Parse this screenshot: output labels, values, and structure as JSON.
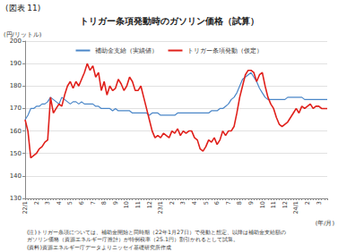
{
  "chart_data": {
    "type": "line",
    "figure_label": "(図表 11)",
    "title": "トリガー条項発動時のガソリン価格（試算）",
    "y_label": "(円/リットル)",
    "x_label": "(年/月)",
    "annotations": [
      "(注)トリガー条項については、補助金開始と同時期（22年1月27日）で発動と想定、以降は補助金支給額の",
      "ガソリン価格（資源エネルギー庁推計）が特例税率（25.1円）割引かれるとして試算。",
      "(資料)資源エネルギー庁データよりニッセイ基礎研究所作成"
    ],
    "categories": [
      "22/1",
      null,
      null,
      null,
      "2",
      null,
      null,
      null,
      "3",
      null,
      null,
      null,
      "4",
      null,
      null,
      null,
      "5",
      null,
      null,
      null,
      "6",
      null,
      null,
      null,
      "7",
      null,
      null,
      null,
      "8",
      null,
      null,
      null,
      "9",
      null,
      null,
      null,
      "10",
      null,
      null,
      null,
      "11",
      null,
      null,
      null,
      "12",
      null,
      null,
      null,
      "23/1",
      null,
      null,
      null,
      "2",
      null,
      null,
      null,
      "3",
      null,
      null,
      null,
      "4",
      null,
      null,
      null,
      "5",
      null,
      null,
      null,
      "6",
      null,
      null,
      null,
      "7",
      null,
      null,
      null,
      "8",
      null,
      null,
      null,
      "9",
      null,
      null,
      null,
      "10",
      null,
      null,
      null,
      "11",
      null,
      null,
      null,
      "12",
      null,
      null,
      null,
      "24/1",
      null,
      null,
      null,
      "2",
      null,
      null,
      null,
      "3",
      null,
      null,
      null
    ],
    "series": [
      {
        "name": "補助金支給（実績値）",
        "color": "#4a86c8",
        "values": [
          165,
          167,
          170,
          170,
          171,
          171,
          172,
          172,
          173,
          175,
          174,
          173,
          172,
          175,
          174,
          173,
          172,
          173,
          173,
          172,
          173,
          172,
          172,
          172,
          172,
          171,
          171,
          170,
          170,
          170,
          170,
          169,
          170,
          169,
          169,
          169,
          169,
          169,
          168,
          168,
          168,
          168,
          168,
          168,
          167,
          168,
          168,
          168,
          167,
          167,
          167,
          167,
          167,
          167,
          168,
          168,
          168,
          168,
          168,
          168,
          168,
          168,
          168,
          168,
          168,
          168,
          169,
          169,
          169,
          170,
          170,
          171,
          172,
          174,
          175,
          177,
          180,
          183,
          184,
          185,
          186,
          184,
          182,
          179,
          177,
          175,
          174,
          174,
          174,
          174,
          174,
          174,
          174,
          175,
          175,
          175,
          175,
          175,
          175,
          174,
          174,
          174,
          174,
          174,
          174,
          174,
          174,
          174
        ]
      },
      {
        "name": "トリガー条項発動（仮定）",
        "color": "#e0201b",
        "values": [
          165,
          160,
          148,
          149,
          150,
          152,
          153,
          155,
          156,
          175,
          168,
          170,
          172,
          171,
          176,
          180,
          182,
          179,
          182,
          180,
          183,
          186,
          190,
          187,
          189,
          184,
          186,
          178,
          182,
          176,
          180,
          178,
          179,
          183,
          181,
          178,
          180,
          184,
          182,
          178,
          178,
          180,
          175,
          170,
          165,
          160,
          157,
          158,
          157,
          159,
          158,
          157,
          160,
          159,
          161,
          158,
          160,
          159,
          160,
          160,
          157,
          156,
          152,
          151,
          153,
          156,
          155,
          157,
          154,
          156,
          160,
          158,
          160,
          160,
          162,
          168,
          175,
          180,
          185,
          187,
          187,
          186,
          182,
          185,
          186,
          180,
          175,
          172,
          170,
          166,
          163,
          162,
          163,
          164,
          166,
          168,
          170,
          168,
          171,
          170,
          171,
          172,
          170,
          171,
          171,
          170,
          170,
          170
        ]
      }
    ],
    "ylim": [
      130,
      200
    ],
    "yticks": [
      130,
      140,
      150,
      160,
      170,
      180,
      190,
      200
    ],
    "grid": true,
    "legend": "top"
  }
}
